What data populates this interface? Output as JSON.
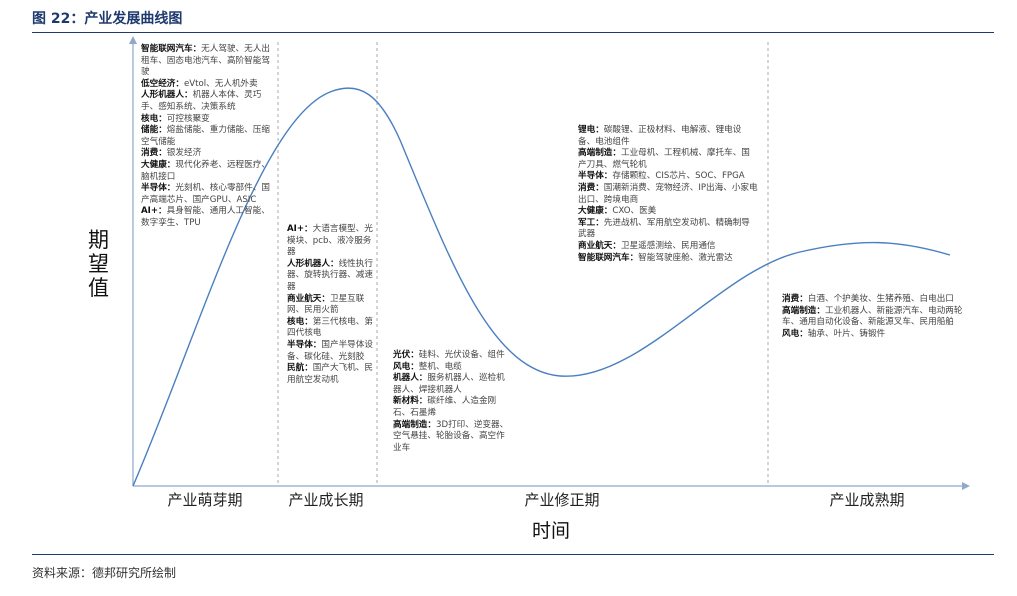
{
  "title": "图 22：产业发展曲线图",
  "source": "资料来源：德邦研究所绘制",
  "y_axis_label": "期望值",
  "x_axis_label": "时间",
  "phases": [
    "产业萌芽期",
    "产业成长期",
    "产业修正期",
    "产业成熟期"
  ],
  "colors": {
    "curve": "#4a7fc1",
    "title": "#1f3a6e",
    "divider": "#aaaaaa"
  },
  "blocks": [
    [
      {
        "label": "智能联网汽车：",
        "text": "无人驾驶、无人出租车、固态电池汽车、高阶智能驾驶"
      },
      {
        "label": "低空经济：",
        "text": "eVtol、无人机外卖"
      },
      {
        "label": "人形机器人：",
        "text": "机器人本体、灵巧手、感知系统、决策系统"
      },
      {
        "label": "核电：",
        "text": "可控核聚变"
      },
      {
        "label": "储能：",
        "text": "熔盐储能、重力储能、压缩空气储能"
      },
      {
        "label": "消费：",
        "text": "银发经济"
      },
      {
        "label": "大健康：",
        "text": "现代化养老、远程医疗、脑机接口"
      },
      {
        "label": "半导体：",
        "text": "光刻机、核心零部件、国产高端芯片、国产GPU、ASIC"
      },
      {
        "label": "AI+：",
        "text": "具身智能、通用人工智能、数字孪生、TPU"
      }
    ],
    [
      {
        "label": "AI+：",
        "text": "大语言模型、光模块、pcb、液冷服务器"
      },
      {
        "label": "人形机器人：",
        "text": "线性执行器、旋转执行器、减速器"
      },
      {
        "label": "商业航天：",
        "text": "卫星互联网、民用火箭"
      },
      {
        "label": "核电：",
        "text": "第三代核电、第四代核电"
      },
      {
        "label": "半导体：",
        "text": "国产半导体设备、碳化硅、光刻胶"
      },
      {
        "label": "民航：",
        "text": "国产大飞机、民用航空发动机"
      }
    ],
    [
      {
        "label": "光伏：",
        "text": "硅料、光伏设备、组件"
      },
      {
        "label": "风电：",
        "text": "整机、电缆"
      },
      {
        "label": "机器人：",
        "text": "服务机器人、巡检机器人、焊接机器人"
      },
      {
        "label": "新材料：",
        "text": "碳纤维、人造金刚石、石墨烯"
      },
      {
        "label": "高端制造：",
        "text": "3D打印、逆变器、空气悬挂、轮胎设备、高空作业车"
      }
    ],
    [
      {
        "label": "锂电：",
        "text": "碳酸锂、正极材料、电解液、锂电设备、电池组件"
      },
      {
        "label": "高端制造：",
        "text": "工业母机、工程机械、摩托车、国产刀具、燃气轮机"
      },
      {
        "label": "半导体：",
        "text": "存储颗粒、CIS芯片、SOC、FPGA"
      },
      {
        "label": "消费：",
        "text": "国潮新消费、宠物经济、IP出海、小家电出口、跨境电商"
      },
      {
        "label": "大健康：",
        "text": "CXO、医美"
      },
      {
        "label": "军工：",
        "text": "先进战机、军用航空发动机、精确制导武器"
      },
      {
        "label": "商业航天：",
        "text": "卫星遥感测绘、民用通信"
      },
      {
        "label": "智能联网汽车：",
        "text": "智能驾驶座舱、激光雷达"
      }
    ],
    [
      {
        "label": "消费：",
        "text": "白酒、个护美妆、生猪养殖、白电出口"
      },
      {
        "label": "高端制造：",
        "text": "工业机器人、新能源汽车、电动两轮车、通用自动化设备、新能源叉车、民用船舶"
      },
      {
        "label": "风电：",
        "text": "轴承、叶片、铸锻件"
      }
    ]
  ]
}
